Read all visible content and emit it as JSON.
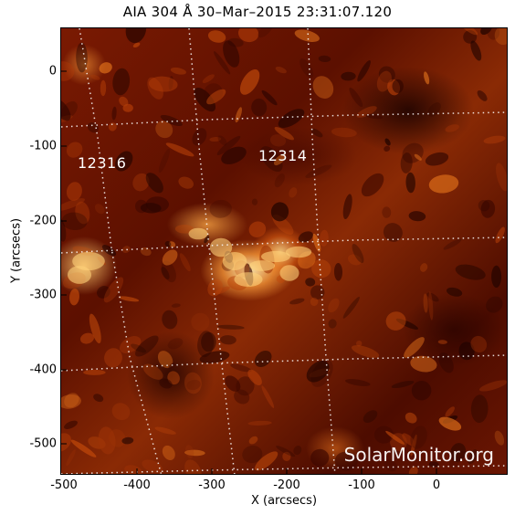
{
  "title": "AIA 304 Å 30–Mar–2015 23:31:07.120",
  "axes": {
    "xlabel": "X (arcsecs)",
    "ylabel": "Y (arcsecs)",
    "xticks": [
      "-500",
      "-400",
      "-300",
      "-200",
      "-100",
      "0"
    ],
    "yticks": [
      "0",
      "-100",
      "-200",
      "-300",
      "-400",
      "-500"
    ]
  },
  "regions": [
    {
      "label": "12316"
    },
    {
      "label": "12314"
    }
  ],
  "watermark": "SolarMonitor.org",
  "colors": {
    "accent": "#ff9a3c",
    "grid": "#ffffff",
    "background": "#5c1000"
  }
}
